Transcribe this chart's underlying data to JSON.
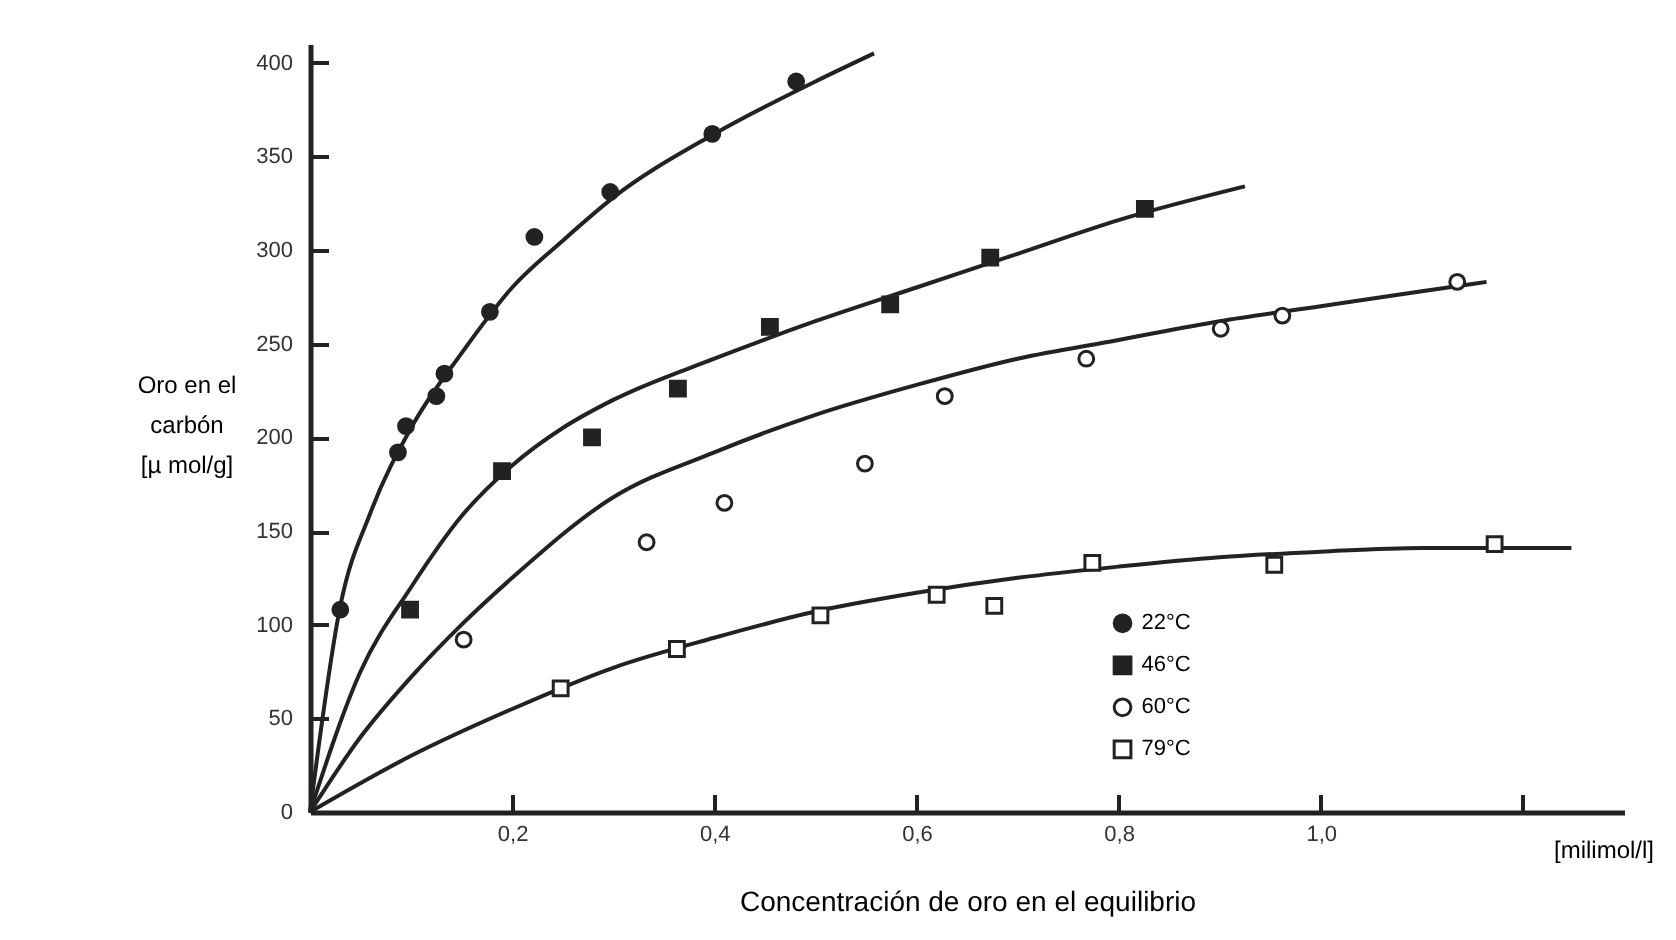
{
  "chart_data": {
    "type": "scatter",
    "xlabel": "Concentración de oro en el equilibrio",
    "ylabel": "Oro en el\ncarbón\n[µ mol/g]",
    "annotations": [
      "[milimol/l]"
    ],
    "xlim": [
      0,
      1.3
    ],
    "ylim": [
      0,
      410
    ],
    "xticks": [
      {
        "value": 0.2,
        "label": "0,2"
      },
      {
        "value": 0.4,
        "label": "0,4"
      },
      {
        "value": 0.6,
        "label": "0,6"
      },
      {
        "value": 0.8,
        "label": "0,8"
      },
      {
        "value": 1.0,
        "label": "1,0"
      },
      {
        "value": 1.2,
        "label": null
      }
    ],
    "yticks": [
      0,
      50,
      100,
      150,
      200,
      250,
      300,
      350,
      400
    ],
    "grid": false,
    "legend": "bottom",
    "series": [
      {
        "name": "22°C",
        "marker": "circle",
        "color": "#222222",
        "x": [
          0.03,
          0.087,
          0.095,
          0.125,
          0.133,
          0.178,
          0.222,
          0.297,
          0.398,
          0.481
        ],
        "values": [
          108,
          192,
          206,
          222,
          234,
          267,
          307,
          331,
          362,
          390
        ]
      },
      {
        "name": "46°C",
        "marker": "square",
        "color": "#222222",
        "x": [
          0.099,
          0.19,
          0.279,
          0.364,
          0.455,
          0.574,
          0.673,
          0.826
        ],
        "values": [
          108,
          182,
          200,
          226,
          259,
          271,
          296,
          322
        ]
      },
      {
        "name": "60°C",
        "marker": "circle",
        "color": "#ffffff",
        "x": [
          0.152,
          0.333,
          0.41,
          0.549,
          0.628,
          0.768,
          0.901,
          0.962,
          1.135
        ],
        "values": [
          92,
          144,
          165,
          186,
          222,
          242,
          258,
          265,
          283
        ]
      },
      {
        "name": "79°C",
        "marker": "square",
        "color": "#ffffff",
        "x": [
          0.248,
          0.363,
          0.505,
          0.62,
          0.677,
          0.774,
          0.954,
          1.172
        ],
        "values": [
          66,
          87,
          105,
          116,
          110,
          133,
          132,
          143
        ]
      },
      {
        "type": "line",
        "line_style": "solid",
        "color": "#222222",
        "x": [
          0,
          0.03,
          0.06,
          0.1,
          0.15,
          0.2,
          0.25,
          0.3,
          0.4,
          0.5,
          0.558
        ],
        "values": [
          0,
          110,
          160,
          205,
          245,
          280,
          305,
          328,
          362,
          390,
          405
        ]
      },
      {
        "type": "line",
        "line_style": "solid",
        "color": "#222222",
        "x": [
          0,
          0.05,
          0.1,
          0.15,
          0.2,
          0.25,
          0.3,
          0.4,
          0.5,
          0.6,
          0.7,
          0.8,
          0.925
        ],
        "values": [
          0,
          75,
          120,
          158,
          185,
          205,
          220,
          242,
          262,
          280,
          298,
          316,
          334
        ]
      },
      {
        "type": "line",
        "line_style": "solid",
        "color": "#222222",
        "x": [
          0,
          0.05,
          0.1,
          0.15,
          0.2,
          0.3,
          0.4,
          0.5,
          0.6,
          0.7,
          0.8,
          0.9,
          1.0,
          1.1,
          1.164
        ],
        "values": [
          0,
          40,
          72,
          100,
          125,
          168,
          192,
          212,
          228,
          242,
          252,
          262,
          270,
          278,
          283
        ]
      },
      {
        "type": "line",
        "line_style": "solid",
        "color": "#222222",
        "x": [
          0,
          0.1,
          0.2,
          0.3,
          0.4,
          0.5,
          0.6,
          0.7,
          0.8,
          0.9,
          1.0,
          1.1,
          1.248
        ],
        "values": [
          0,
          30,
          55,
          77,
          93,
          107,
          117,
          125,
          131,
          136,
          139,
          141,
          141
        ]
      }
    ]
  }
}
